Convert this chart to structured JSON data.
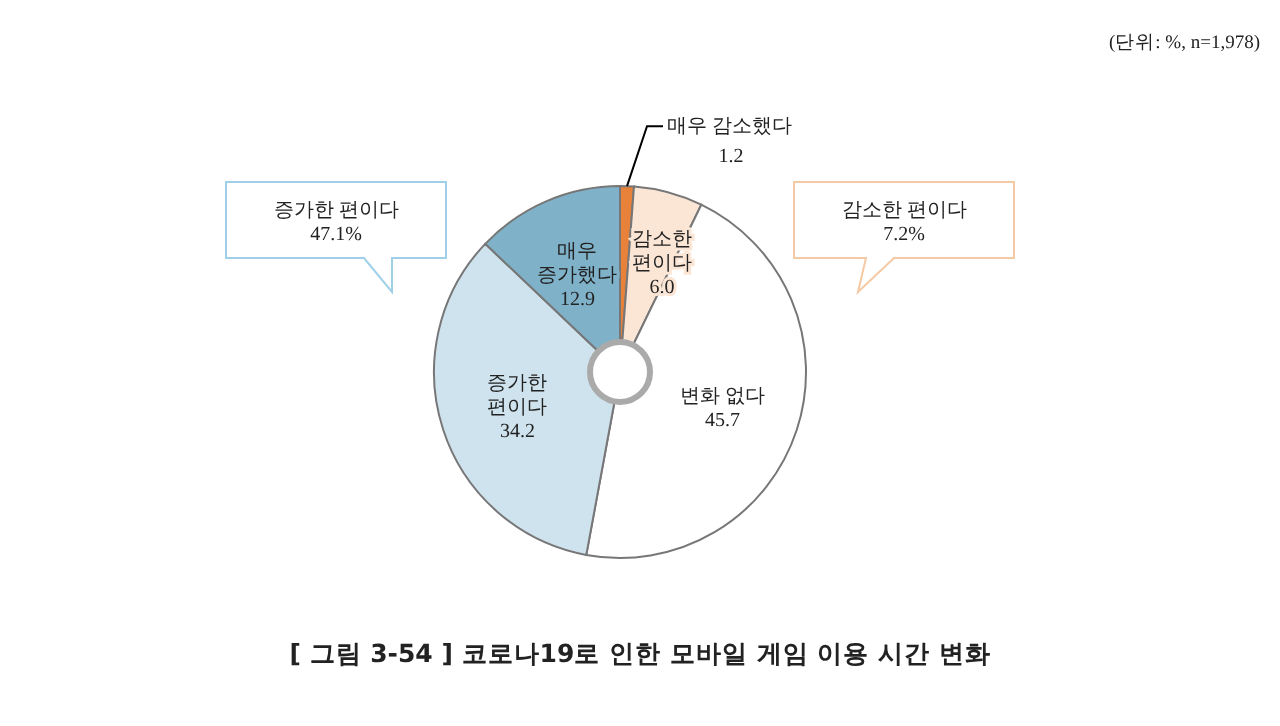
{
  "chart_data": {
    "type": "donut",
    "title": "[ 그림 3-54 ] 코로나19로 인한 모바일 게임 이용 시간 변화",
    "categories": [
      "매우 감소했다",
      "감소한\n편이다",
      "변화 없다",
      "증가한\n편이다",
      "매우\n증가했다"
    ],
    "values": [
      1.2,
      6.0,
      45.7,
      34.2,
      12.9
    ],
    "value_labels": [
      "1.2",
      "6.0",
      "45.7",
      "34.2",
      "12.9"
    ],
    "colors": [
      "#e8823a",
      "#fbe6d6",
      "#ffffff",
      "#cfe3ee",
      "#7fb2c9"
    ],
    "annotations": [
      "(단위: %, n=1,978)",
      "증가한 편이다\n47.1%",
      "감소한 편이다\n7.2%"
    ]
  }
}
